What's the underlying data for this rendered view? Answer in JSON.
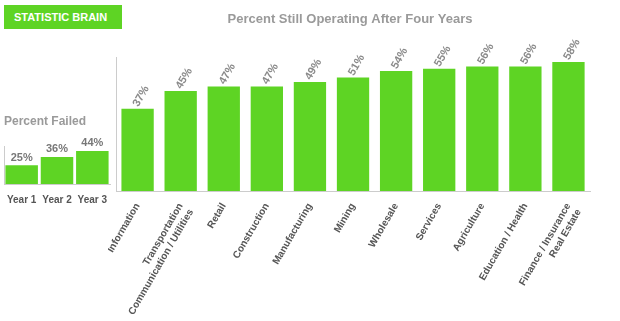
{
  "header": {
    "text": "STATISTIC BRAIN"
  },
  "chart_data": [
    {
      "type": "bar",
      "title": "Percent Still Operating After Four Years",
      "categories": [
        "Information",
        [
          "Transportation",
          "Communication / Utilities"
        ],
        "Retail",
        "Construction",
        "Manufacturing",
        "Mining",
        "Wholesale",
        "Services",
        "Agriculture",
        "Education / Health",
        [
          "Finance / Insurance",
          "Real Estate"
        ]
      ],
      "values": [
        37,
        45,
        47,
        47,
        49,
        51,
        54,
        55,
        56,
        56,
        58
      ],
      "value_labels": [
        "37%",
        "45%",
        "47%",
        "47%",
        "49%",
        "51%",
        "54%",
        "55%",
        "56%",
        "56%",
        "58%"
      ],
      "color": "#5ed424",
      "ylim": [
        0,
        60
      ],
      "grid": false,
      "data_labels": true,
      "tick_labels": "x"
    },
    {
      "type": "bar",
      "title": "Percent Failed",
      "categories": [
        "Year 1",
        "Year 2",
        "Year 3"
      ],
      "values": [
        25,
        36,
        44
      ],
      "value_labels": [
        "25%",
        "36%",
        "44%"
      ],
      "color": "#5ed424",
      "ylim": [
        0,
        50
      ],
      "grid": false,
      "data_labels": true,
      "tick_labels": "x"
    }
  ]
}
